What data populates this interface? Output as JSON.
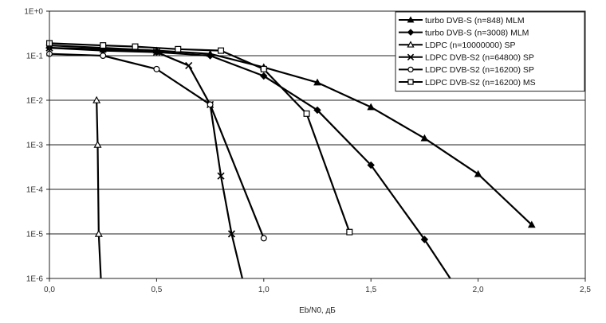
{
  "chart_data": {
    "type": "line",
    "title": "",
    "xlabel": "Eb/N0, дБ",
    "ylabel": "",
    "xlim": [
      0,
      2.5
    ],
    "ylim": [
      1e-06,
      1
    ],
    "yscale": "log",
    "grid": "horizontal",
    "legend_position": "top-right",
    "x_ticks": [
      "0,0",
      "0,5",
      "1,0",
      "1,5",
      "2,0",
      "2,5"
    ],
    "y_ticks": [
      "1E-6",
      "1E-5",
      "1E-4",
      "1E-3",
      "1E-2",
      "1E-1",
      "1E+0"
    ],
    "series": [
      {
        "name": "turbo DVB-S (n=848) MLM",
        "marker": "triangle-filled",
        "color": "#000000",
        "x": [
          0.0,
          0.25,
          0.5,
          0.75,
          1.0,
          1.25,
          1.5,
          1.75,
          2.0,
          2.25
        ],
        "y": [
          0.17,
          0.15,
          0.13,
          0.11,
          0.055,
          0.025,
          0.007,
          0.0014,
          0.00022,
          1.6e-05
        ]
      },
      {
        "name": "turbo DVB-S (n=3008) MLM",
        "marker": "diamond-filled",
        "color": "#000000",
        "x": [
          0.0,
          0.25,
          0.5,
          0.75,
          1.0,
          1.25,
          1.5,
          1.75,
          1.87
        ],
        "y": [
          0.15,
          0.13,
          0.12,
          0.1,
          0.035,
          0.006,
          0.00035,
          7.5e-06,
          1e-06
        ]
      },
      {
        "name": "LDPC (n=10000000) SP",
        "marker": "triangle-open",
        "color": "#000000",
        "x": [
          0.22,
          0.225,
          0.23,
          0.24
        ],
        "y": [
          0.01,
          0.001,
          1e-05,
          1e-06
        ]
      },
      {
        "name": "LDPC DVB-S2 (n=64800) SP",
        "marker": "x",
        "color": "#000000",
        "x": [
          0.0,
          0.25,
          0.5,
          0.65,
          0.75,
          0.8,
          0.85,
          0.9
        ],
        "y": [
          0.15,
          0.14,
          0.12,
          0.06,
          0.008,
          0.0002,
          1e-05,
          1e-06
        ]
      },
      {
        "name": "LDPC DVB-S2 (n=16200) SP",
        "marker": "circle-open",
        "color": "#000000",
        "x": [
          0.0,
          0.25,
          0.5,
          0.75,
          1.0
        ],
        "y": [
          0.11,
          0.1,
          0.05,
          0.008,
          8e-06
        ]
      },
      {
        "name": "LDPC DVB-S2 (n=16200) MS",
        "marker": "square-open",
        "color": "#000000",
        "x": [
          0.0,
          0.25,
          0.4,
          0.6,
          0.8,
          1.0,
          1.2,
          1.4
        ],
        "y": [
          0.19,
          0.17,
          0.16,
          0.14,
          0.13,
          0.05,
          0.005,
          1.1e-05
        ]
      }
    ]
  }
}
